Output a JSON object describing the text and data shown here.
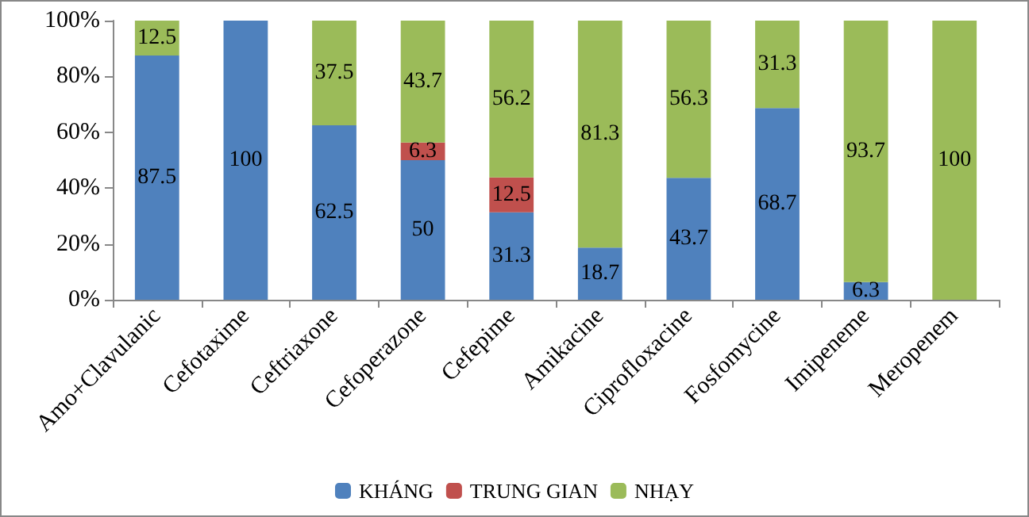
{
  "chart_data": {
    "type": "bar",
    "stacked": true,
    "data_labels": true,
    "grid": false,
    "legend": "bottom",
    "categories": [
      "Amo+Clavulanic",
      "Cefotaxime",
      "Ceftriaxone",
      "Cefoperazone",
      "Cefepime",
      "Amikacine",
      "Ciprofloxacine",
      "Fosfomycine",
      "Imipeneme",
      "Meropenem"
    ],
    "ylim": [
      0,
      100
    ],
    "yticks": [
      {
        "value": 0,
        "label": "0%"
      },
      {
        "value": 20,
        "label": "20%"
      },
      {
        "value": 40,
        "label": "40%"
      },
      {
        "value": 60,
        "label": "60%"
      },
      {
        "value": 80,
        "label": "80%"
      },
      {
        "value": 100,
        "label": "100%"
      }
    ],
    "series": [
      {
        "name": "KHÁNG",
        "color": "#4f81bd",
        "values": [
          87.5,
          100,
          62.5,
          50,
          31.3,
          18.7,
          43.7,
          68.7,
          6.3,
          null
        ]
      },
      {
        "name": "TRUNG GIAN",
        "color": "#c0504d",
        "values": [
          null,
          null,
          null,
          6.3,
          12.5,
          null,
          null,
          null,
          null,
          null
        ]
      },
      {
        "name": "NHẠY",
        "color": "#9bbb59",
        "values": [
          12.5,
          null,
          37.5,
          43.7,
          56.2,
          81.3,
          56.3,
          31.3,
          93.7,
          100
        ]
      }
    ]
  }
}
